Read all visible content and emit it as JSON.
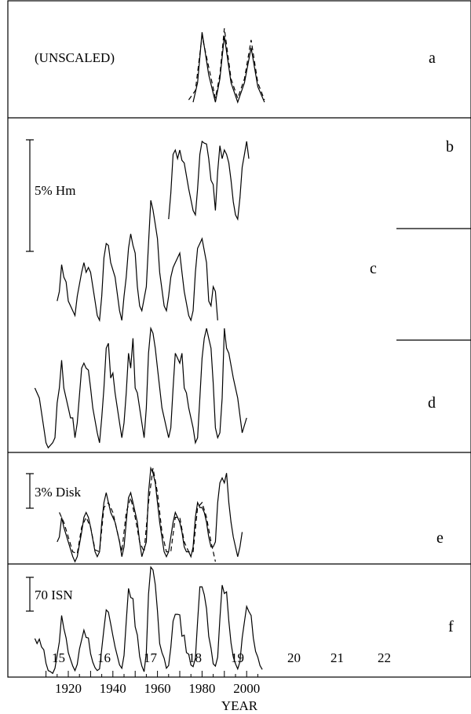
{
  "chart_data": {
    "type": "line",
    "xlabel": "YEAR",
    "xlim": [
      1905,
      2010
    ],
    "x_ticks": [
      1920,
      1940,
      1960,
      1980,
      2000
    ],
    "panel_labels": [
      "a",
      "b",
      "c",
      "d",
      "e",
      "f"
    ],
    "scale_bars": {
      "hm": "5% Hm",
      "disk": "3% Disk",
      "isn": "70 ISN"
    },
    "annotation_unscaled": "(UNSCALED)",
    "cycle_numbers": [
      "15",
      "16",
      "17",
      "18",
      "19",
      "20",
      "21",
      "22"
    ],
    "panels": [
      {
        "id": "a",
        "series": [
          {
            "style": "solid",
            "x": [
              1976,
              1978,
              1980,
              1983,
              1986,
              1988,
              1990,
              1993,
              1996,
              1999,
              2002,
              2005,
              2008
            ],
            "y": [
              5,
              30,
              95,
              40,
              5,
              35,
              90,
              30,
              5,
              30,
              75,
              25,
              5
            ]
          },
          {
            "style": "dashed",
            "x": [
              1974,
              1977,
              1980,
              1983,
              1986,
              1988,
              1990,
              1993,
              1996,
              1999,
              2002,
              2005,
              2008
            ],
            "y": [
              8,
              20,
              90,
              50,
              10,
              40,
              100,
              35,
              10,
              35,
              85,
              30,
              8
            ]
          }
        ]
      },
      {
        "id": "b",
        "series": [
          {
            "style": "solid",
            "x": [
              1965,
              1966,
              1967,
              1968,
              1969,
              1970,
              1971,
              1972,
              1974,
              1976,
              1977,
              1978,
              1979,
              1980,
              1981,
              1982,
              1983,
              1984,
              1985,
              1986,
              1987,
              1988,
              1989,
              1990,
              1991,
              1992,
              1993,
              1994,
              1995,
              1996,
              1997,
              1998,
              1999,
              2000,
              2001
            ],
            "y": [
              10,
              40,
              85,
              90,
              80,
              90,
              78,
              75,
              45,
              20,
              15,
              45,
              85,
              100,
              98,
              97,
              80,
              55,
              50,
              20,
              65,
              95,
              80,
              90,
              85,
              75,
              55,
              30,
              15,
              10,
              35,
              70,
              85,
              100,
              80
            ]
          }
        ]
      },
      {
        "id": "c",
        "series": [
          {
            "style": "solid",
            "x": [
              1915,
              1916,
              1917,
              1918,
              1919,
              1920,
              1922,
              1923,
              1924,
              1926,
              1927,
              1928,
              1929,
              1930,
              1932,
              1933,
              1934,
              1935,
              1936,
              1937,
              1938,
              1939,
              1941,
              1943,
              1944,
              1945,
              1946,
              1947,
              1948,
              1949,
              1950,
              1951,
              1952,
              1953,
              1955,
              1956,
              1957,
              1958,
              1959,
              1960,
              1961,
              1963,
              1964,
              1965,
              1966,
              1967,
              1968,
              1969,
              1970,
              1971,
              1972,
              1974,
              1975,
              1976,
              1977,
              1978,
              1979,
              1980,
              1982,
              1983,
              1984,
              1985,
              1986,
              1987
            ],
            "y": [
              30,
              40,
              68,
              55,
              50,
              30,
              20,
              15,
              35,
              60,
              70,
              60,
              65,
              60,
              30,
              15,
              10,
              35,
              75,
              90,
              88,
              70,
              55,
              20,
              10,
              35,
              55,
              85,
              100,
              88,
              80,
              45,
              25,
              20,
              45,
              90,
              135,
              125,
              110,
              95,
              60,
              25,
              20,
              35,
              55,
              65,
              70,
              75,
              80,
              60,
              40,
              15,
              10,
              20,
              60,
              85,
              90,
              95,
              70,
              30,
              25,
              45,
              40,
              10
            ]
          }
        ]
      },
      {
        "id": "d",
        "series": [
          {
            "style": "solid",
            "x": [
              1905,
              1907,
              1909,
              1910,
              1911,
              1913,
              1914,
              1915,
              1916,
              1917,
              1918,
              1920,
              1921,
              1922,
              1923,
              1924,
              1926,
              1927,
              1928,
              1929,
              1930,
              1931,
              1933,
              1934,
              1935,
              1936,
              1937,
              1938,
              1939,
              1940,
              1941,
              1943,
              1944,
              1945,
              1946,
              1947,
              1948,
              1949,
              1950,
              1951,
              1953,
              1954,
              1955,
              1956,
              1957,
              1958,
              1959,
              1960,
              1962,
              1964,
              1965,
              1966,
              1967,
              1968,
              1969,
              1970,
              1971,
              1972,
              1973,
              1974,
              1975,
              1976,
              1977,
              1978,
              1979,
              1980,
              1981,
              1982,
              1983,
              1984,
              1985,
              1986,
              1987,
              1988,
              1989,
              1990,
              1991,
              1992,
              1994,
              1996,
              1998,
              2000
            ],
            "y": [
              60,
              50,
              20,
              5,
              0,
              5,
              10,
              45,
              60,
              88,
              60,
              40,
              30,
              30,
              10,
              25,
              80,
              85,
              80,
              78,
              60,
              40,
              15,
              5,
              30,
              60,
              100,
              105,
              70,
              75,
              55,
              25,
              10,
              25,
              55,
              95,
              80,
              110,
              60,
              55,
              25,
              10,
              40,
              95,
              120,
              115,
              100,
              80,
              40,
              20,
              10,
              20,
              60,
              95,
              90,
              85,
              95,
              60,
              55,
              40,
              30,
              20,
              5,
              10,
              50,
              90,
              110,
              120,
              110,
              100,
              65,
              20,
              10,
              15,
              50,
              120,
              100,
              95,
              70,
              50,
              15,
              30
            ]
          }
        ]
      },
      {
        "id": "e",
        "series": [
          {
            "style": "solid",
            "x": [
              1915,
              1916,
              1917,
              1918,
              1920,
              1922,
              1923,
              1924,
              1926,
              1927,
              1928,
              1929,
              1930,
              1932,
              1933,
              1934,
              1935,
              1936,
              1937,
              1938,
              1939,
              1941,
              1943,
              1944,
              1945,
              1946,
              1947,
              1948,
              1949,
              1950,
              1951,
              1952,
              1953,
              1955,
              1956,
              1957,
              1958,
              1959,
              1960,
              1961,
              1963,
              1964,
              1965,
              1966,
              1967,
              1968,
              1969,
              1970,
              1971,
              1972,
              1973,
              1974,
              1975,
              1976,
              1977,
              1978,
              1979,
              1980,
              1981,
              1982,
              1983,
              1984,
              1985,
              1986,
              1987,
              1988,
              1989,
              1990,
              1991,
              1992,
              1993,
              1994,
              1995,
              1996,
              1997,
              1998
            ],
            "y": [
              20,
              25,
              45,
              35,
              20,
              5,
              0,
              5,
              30,
              45,
              50,
              45,
              35,
              10,
              5,
              10,
              40,
              60,
              70,
              60,
              50,
              40,
              20,
              5,
              15,
              40,
              65,
              70,
              60,
              50,
              40,
              20,
              5,
              20,
              70,
              95,
              90,
              80,
              60,
              40,
              10,
              5,
              10,
              25,
              40,
              50,
              45,
              40,
              30,
              15,
              10,
              10,
              5,
              15,
              45,
              60,
              55,
              55,
              50,
              40,
              25,
              15,
              15,
              20,
              60,
              80,
              85,
              80,
              90,
              60,
              40,
              25,
              15,
              5,
              15,
              30
            ]
          },
          {
            "style": "dashed",
            "x": [
              1916,
              1918,
              1920,
              1922,
              1924,
              1926,
              1928,
              1930,
              1932,
              1934,
              1936,
              1938,
              1940,
              1942,
              1944,
              1946,
              1948,
              1950,
              1952,
              1954,
              1956,
              1958,
              1960,
              1962,
              1964,
              1966,
              1968,
              1970,
              1972,
              1974,
              1976,
              1978,
              1980,
              1982,
              1984,
              1986
            ],
            "y": [
              50,
              40,
              25,
              10,
              8,
              35,
              45,
              35,
              12,
              10,
              55,
              60,
              50,
              30,
              10,
              50,
              65,
              45,
              20,
              10,
              60,
              95,
              70,
              30,
              10,
              10,
              45,
              45,
              20,
              10,
              10,
              55,
              60,
              45,
              20,
              0
            ]
          }
        ]
      },
      {
        "id": "f",
        "series": [
          {
            "style": "solid",
            "x": [
              1905,
              1906,
              1907,
              1908,
              1909,
              1910,
              1911,
              1912,
              1913,
              1914,
              1916,
              1917,
              1918,
              1919,
              1920,
              1921,
              1922,
              1923,
              1924,
              1925,
              1927,
              1928,
              1929,
              1930,
              1931,
              1932,
              1933,
              1934,
              1936,
              1937,
              1938,
              1939,
              1940,
              1941,
              1943,
              1944,
              1945,
              1946,
              1947,
              1948,
              1949,
              1950,
              1951,
              1952,
              1953,
              1954,
              1955,
              1956,
              1957,
              1958,
              1959,
              1960,
              1961,
              1962,
              1963,
              1964,
              1965,
              1966,
              1967,
              1968,
              1969,
              1970,
              1971,
              1972,
              1973,
              1974,
              1975,
              1976,
              1977,
              1978,
              1979,
              1980,
              1981,
              1982,
              1983,
              1984,
              1985,
              1986,
              1987,
              1988,
              1989,
              1990,
              1991,
              1992,
              1993,
              1994,
              1995,
              1996,
              1997,
              1998,
              1999,
              2000,
              2001,
              2002,
              2003,
              2004,
              2005,
              2006,
              2007
            ],
            "y": [
              63,
              54,
              62,
              48,
              43,
              19,
              6,
              4,
              1,
              10,
              57,
              104,
              81,
              64,
              38,
              26,
              14,
              6,
              17,
              44,
              78,
              65,
              64,
              36,
              21,
              11,
              6,
              9,
              80,
              114,
              110,
              89,
              68,
              48,
              16,
              10,
              33,
              93,
              152,
              136,
              134,
              84,
              69,
              31,
              14,
              4,
              38,
              142,
              190,
              185,
              159,
              112,
              54,
              38,
              28,
              10,
              15,
              47,
              94,
              106,
              106,
              105,
              67,
              69,
              38,
              35,
              16,
              13,
              28,
              93,
              155,
              155,
              141,
              116,
              67,
              46,
              18,
              14,
              30,
              98,
              158,
              143,
              146,
              94,
              55,
              30,
              18,
              9,
              22,
              64,
              93,
              120,
              111,
              104,
              64,
              40,
              30,
              15,
              8
            ]
          }
        ]
      }
    ]
  }
}
